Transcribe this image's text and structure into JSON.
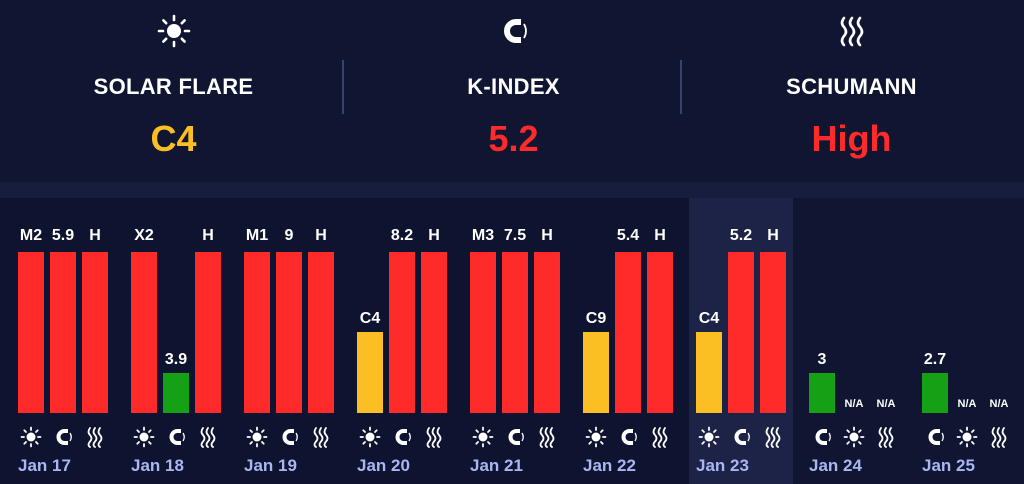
{
  "colors": {
    "bg": "#101532",
    "red": "#ff2b2b",
    "yellow": "#fbbf24",
    "green": "#16a016",
    "label": "#ffffff",
    "date": "#a9b6f2"
  },
  "header": {
    "solar": {
      "label": "SOLAR FLARE",
      "value": "C4",
      "color": "#fbbf24",
      "icon": "sun-icon"
    },
    "kindex": {
      "label": "K-INDEX",
      "value": "5.2",
      "color": "#ff2b2b",
      "icon": "magnet-icon"
    },
    "schumann": {
      "label": "SCHUMANN",
      "value": "High",
      "color": "#ff2b2b",
      "icon": "waves-icon"
    }
  },
  "days": [
    {
      "date": "Jan 17",
      "today": false,
      "bars": [
        {
          "metric": "solar",
          "icon": "sun-icon",
          "label": "M2",
          "level": 1.0,
          "color": "#ff2b2b"
        },
        {
          "metric": "kindex",
          "icon": "magnet-icon",
          "label": "5.9",
          "level": 1.0,
          "color": "#ff2b2b"
        },
        {
          "metric": "schumann",
          "icon": "waves-icon",
          "label": "H",
          "level": 1.0,
          "color": "#ff2b2b"
        }
      ]
    },
    {
      "date": "Jan 18",
      "today": false,
      "bars": [
        {
          "metric": "solar",
          "icon": "sun-icon",
          "label": "X2",
          "level": 1.0,
          "color": "#ff2b2b"
        },
        {
          "metric": "kindex",
          "icon": "magnet-icon",
          "label": "3.9",
          "level": 0.25,
          "color": "#16a016"
        },
        {
          "metric": "schumann",
          "icon": "waves-icon",
          "label": "H",
          "level": 1.0,
          "color": "#ff2b2b"
        }
      ]
    },
    {
      "date": "Jan 19",
      "today": false,
      "bars": [
        {
          "metric": "solar",
          "icon": "sun-icon",
          "label": "M1",
          "level": 1.0,
          "color": "#ff2b2b"
        },
        {
          "metric": "kindex",
          "icon": "magnet-icon",
          "label": "9",
          "level": 1.0,
          "color": "#ff2b2b"
        },
        {
          "metric": "schumann",
          "icon": "waves-icon",
          "label": "H",
          "level": 1.0,
          "color": "#ff2b2b"
        }
      ]
    },
    {
      "date": "Jan 20",
      "today": false,
      "bars": [
        {
          "metric": "solar",
          "icon": "sun-icon",
          "label": "C4",
          "level": 0.5,
          "color": "#fbbf24"
        },
        {
          "metric": "kindex",
          "icon": "magnet-icon",
          "label": "8.2",
          "level": 1.0,
          "color": "#ff2b2b"
        },
        {
          "metric": "schumann",
          "icon": "waves-icon",
          "label": "H",
          "level": 1.0,
          "color": "#ff2b2b"
        }
      ]
    },
    {
      "date": "Jan 21",
      "today": false,
      "bars": [
        {
          "metric": "solar",
          "icon": "sun-icon",
          "label": "M3",
          "level": 1.0,
          "color": "#ff2b2b"
        },
        {
          "metric": "kindex",
          "icon": "magnet-icon",
          "label": "7.5",
          "level": 1.0,
          "color": "#ff2b2b"
        },
        {
          "metric": "schumann",
          "icon": "waves-icon",
          "label": "H",
          "level": 1.0,
          "color": "#ff2b2b"
        }
      ]
    },
    {
      "date": "Jan 22",
      "today": false,
      "bars": [
        {
          "metric": "solar",
          "icon": "sun-icon",
          "label": "C9",
          "level": 0.5,
          "color": "#fbbf24"
        },
        {
          "metric": "kindex",
          "icon": "magnet-icon",
          "label": "5.4",
          "level": 1.0,
          "color": "#ff2b2b"
        },
        {
          "metric": "schumann",
          "icon": "waves-icon",
          "label": "H",
          "level": 1.0,
          "color": "#ff2b2b"
        }
      ]
    },
    {
      "date": "Jan 23",
      "today": true,
      "bars": [
        {
          "metric": "solar",
          "icon": "sun-icon",
          "label": "C4",
          "level": 0.5,
          "color": "#fbbf24"
        },
        {
          "metric": "kindex",
          "icon": "magnet-icon",
          "label": "5.2",
          "level": 1.0,
          "color": "#ff2b2b"
        },
        {
          "metric": "schumann",
          "icon": "waves-icon",
          "label": "H",
          "level": 1.0,
          "color": "#ff2b2b"
        }
      ]
    },
    {
      "date": "Jan 24",
      "today": false,
      "bars": [
        {
          "metric": "kindex",
          "icon": "magnet-icon",
          "label": "3",
          "level": 0.25,
          "color": "#16a016"
        },
        {
          "metric": "solar",
          "icon": "sun-icon",
          "label": "N/A",
          "level": 0,
          "color": "#ff2b2b"
        },
        {
          "metric": "schumann",
          "icon": "waves-icon",
          "label": "N/A",
          "level": 0,
          "color": "#ff2b2b"
        }
      ]
    },
    {
      "date": "Jan 25",
      "today": false,
      "bars": [
        {
          "metric": "kindex",
          "icon": "magnet-icon",
          "label": "2.7",
          "level": 0.25,
          "color": "#16a016"
        },
        {
          "metric": "solar",
          "icon": "sun-icon",
          "label": "N/A",
          "level": 0,
          "color": "#ff2b2b"
        },
        {
          "metric": "schumann",
          "icon": "waves-icon",
          "label": "N/A",
          "level": 0,
          "color": "#ff2b2b"
        }
      ]
    }
  ]
}
